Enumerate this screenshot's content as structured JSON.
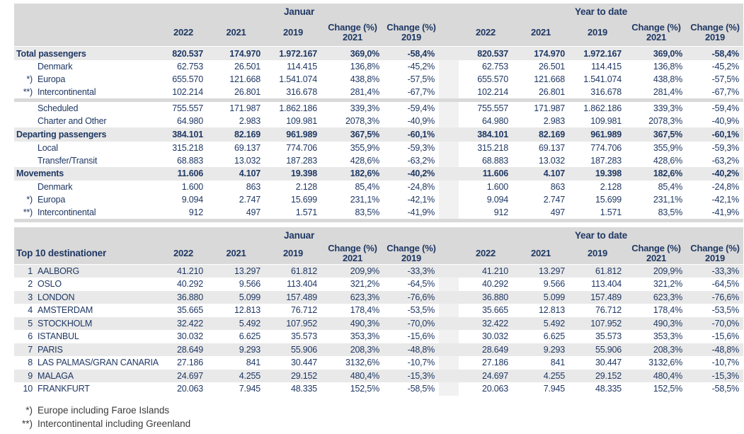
{
  "colors": {
    "header_bg": "#d9d9d9",
    "stripe_bg": "#e9e9e9",
    "text_navy": "#1f3864",
    "gap_strip": "#f1f1f1"
  },
  "header": {
    "group_januar": "Januar",
    "group_ytd": "Year to date",
    "year_2022": "2022",
    "year_2021": "2021",
    "year_2019": "2019",
    "change_label": "Change (%)",
    "change_2021_year": "2021",
    "change_2019_year": "2019"
  },
  "summary_table": {
    "rows": [
      {
        "type": "section",
        "label": "Total passengers",
        "jan": [
          "820.537",
          "174.970",
          "1.972.167",
          "369,0%",
          "-58,4%"
        ],
        "ytd": [
          "820.537",
          "174.970",
          "1.972.167",
          "369,0%",
          "-58,4%"
        ]
      },
      {
        "type": "sub",
        "prefix": "",
        "label": "Denmark",
        "jan": [
          "62.753",
          "26.501",
          "114.415",
          "136,8%",
          "-45,2%"
        ],
        "ytd": [
          "62.753",
          "26.501",
          "114.415",
          "136,8%",
          "-45,2%"
        ]
      },
      {
        "type": "sub",
        "prefix": "*)",
        "label": "Europa",
        "jan": [
          "655.570",
          "121.668",
          "1.541.074",
          "438,8%",
          "-57,5%"
        ],
        "ytd": [
          "655.570",
          "121.668",
          "1.541.074",
          "438,8%",
          "-57,5%"
        ]
      },
      {
        "type": "sub",
        "prefix": "**)",
        "label": "Intercontinental",
        "jan": [
          "102.214",
          "26.801",
          "316.678",
          "281,4%",
          "-67,7%"
        ],
        "ytd": [
          "102.214",
          "26.801",
          "316.678",
          "281,4%",
          "-67,7%"
        ]
      },
      {
        "type": "separator"
      },
      {
        "type": "sub",
        "prefix": "",
        "label": "Scheduled",
        "jan": [
          "755.557",
          "171.987",
          "1.862.186",
          "339,3%",
          "-59,4%"
        ],
        "ytd": [
          "755.557",
          "171.987",
          "1.862.186",
          "339,3%",
          "-59,4%"
        ]
      },
      {
        "type": "sub",
        "prefix": "",
        "label": "Charter and Other",
        "jan": [
          "64.980",
          "2.983",
          "109.981",
          "2078,3%",
          "-40,9%"
        ],
        "ytd": [
          "64.980",
          "2.983",
          "109.981",
          "2078,3%",
          "-40,9%"
        ]
      },
      {
        "type": "section",
        "label": "Departing passengers",
        "jan": [
          "384.101",
          "82.169",
          "961.989",
          "367,5%",
          "-60,1%"
        ],
        "ytd": [
          "384.101",
          "82.169",
          "961.989",
          "367,5%",
          "-60,1%"
        ]
      },
      {
        "type": "sub",
        "prefix": "",
        "label": "Local",
        "jan": [
          "315.218",
          "69.137",
          "774.706",
          "355,9%",
          "-59,3%"
        ],
        "ytd": [
          "315.218",
          "69.137",
          "774.706",
          "355,9%",
          "-59,3%"
        ]
      },
      {
        "type": "sub",
        "prefix": "",
        "label": "Transfer/Transit",
        "jan": [
          "68.883",
          "13.032",
          "187.283",
          "428,6%",
          "-63,2%"
        ],
        "ytd": [
          "68.883",
          "13.032",
          "187.283",
          "428,6%",
          "-63,2%"
        ]
      },
      {
        "type": "section",
        "label": "Movements",
        "jan": [
          "11.606",
          "4.107",
          "19.398",
          "182,6%",
          "-40,2%"
        ],
        "ytd": [
          "11.606",
          "4.107",
          "19.398",
          "182,6%",
          "-40,2%"
        ]
      },
      {
        "type": "sub",
        "prefix": "",
        "label": "Denmark",
        "jan": [
          "1.600",
          "863",
          "2.128",
          "85,4%",
          "-24,8%"
        ],
        "ytd": [
          "1.600",
          "863",
          "2.128",
          "85,4%",
          "-24,8%"
        ]
      },
      {
        "type": "sub",
        "prefix": "*)",
        "label": "Europa",
        "jan": [
          "9.094",
          "2.747",
          "15.699",
          "231,1%",
          "-42,1%"
        ],
        "ytd": [
          "9.094",
          "2.747",
          "15.699",
          "231,1%",
          "-42,1%"
        ]
      },
      {
        "type": "sub",
        "prefix": "**)",
        "label": "Intercontinental",
        "jan": [
          "912",
          "497",
          "1.571",
          "83,5%",
          "-41,9%"
        ],
        "ytd": [
          "912",
          "497",
          "1.571",
          "83,5%",
          "-41,9%"
        ]
      },
      {
        "type": "separator"
      }
    ]
  },
  "top10_table": {
    "title": "Top 10 destinationer",
    "rows": [
      {
        "rank": "1",
        "label": "AALBORG",
        "jan": [
          "41.210",
          "13.297",
          "61.812",
          "209,9%",
          "-33,3%"
        ],
        "ytd": [
          "41.210",
          "13.297",
          "61.812",
          "209,9%",
          "-33,3%"
        ]
      },
      {
        "rank": "2",
        "label": "OSLO",
        "jan": [
          "40.292",
          "9.566",
          "113.404",
          "321,2%",
          "-64,5%"
        ],
        "ytd": [
          "40.292",
          "9.566",
          "113.404",
          "321,2%",
          "-64,5%"
        ]
      },
      {
        "rank": "3",
        "label": "LONDON",
        "jan": [
          "36.880",
          "5.099",
          "157.489",
          "623,3%",
          "-76,6%"
        ],
        "ytd": [
          "36.880",
          "5.099",
          "157.489",
          "623,3%",
          "-76,6%"
        ]
      },
      {
        "rank": "4",
        "label": "AMSTERDAM",
        "jan": [
          "35.665",
          "12.813",
          "76.712",
          "178,4%",
          "-53,5%"
        ],
        "ytd": [
          "35.665",
          "12.813",
          "76.712",
          "178,4%",
          "-53,5%"
        ]
      },
      {
        "rank": "5",
        "label": "STOCKHOLM",
        "jan": [
          "32.422",
          "5.492",
          "107.952",
          "490,3%",
          "-70,0%"
        ],
        "ytd": [
          "32.422",
          "5.492",
          "107.952",
          "490,3%",
          "-70,0%"
        ]
      },
      {
        "rank": "6",
        "label": "ISTANBUL",
        "jan": [
          "30.032",
          "6.625",
          "35.573",
          "353,3%",
          "-15,6%"
        ],
        "ytd": [
          "30.032",
          "6.625",
          "35.573",
          "353,3%",
          "-15,6%"
        ]
      },
      {
        "rank": "7",
        "label": "PARIS",
        "jan": [
          "28.649",
          "9.293",
          "55.906",
          "208,3%",
          "-48,8%"
        ],
        "ytd": [
          "28.649",
          "9.293",
          "55.906",
          "208,3%",
          "-48,8%"
        ]
      },
      {
        "rank": "8",
        "label": "LAS PALMAS/GRAN CANARIA",
        "jan": [
          "27.186",
          "841",
          "30.447",
          "3132,6%",
          "-10,7%"
        ],
        "ytd": [
          "27.186",
          "841",
          "30.447",
          "3132,6%",
          "-10,7%"
        ]
      },
      {
        "rank": "9",
        "label": "MALAGA",
        "jan": [
          "24.697",
          "4.255",
          "29.152",
          "480,4%",
          "-15,3%"
        ],
        "ytd": [
          "24.697",
          "4.255",
          "29.152",
          "480,4%",
          "-15,3%"
        ]
      },
      {
        "rank": "10",
        "label": "FRANKFURT",
        "jan": [
          "20.063",
          "7.945",
          "48.335",
          "152,5%",
          "-58,5%"
        ],
        "ytd": [
          "20.063",
          "7.945",
          "48.335",
          "152,5%",
          "-58,5%"
        ]
      }
    ]
  },
  "footnotes": [
    {
      "marker": "*)",
      "text": "Europe including Faroe Islands"
    },
    {
      "marker": "**)",
      "text": "Intercontinental including Greenland"
    }
  ]
}
